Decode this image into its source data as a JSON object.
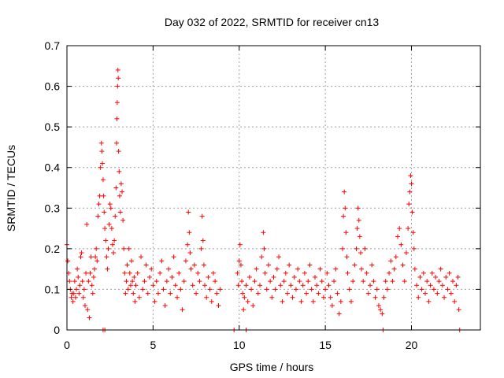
{
  "chart_data": {
    "type": "scatter",
    "title": "Day 032 of 2022, SRMTID for receiver cn13",
    "xlabel": "GPS time / hours",
    "ylabel": "SRMTID / TECUs",
    "xlim": [
      0,
      24
    ],
    "ylim": [
      0,
      0.7
    ],
    "xticks": [
      0,
      5,
      10,
      15,
      20
    ],
    "yticks": [
      0,
      0.1,
      0.2,
      0.3,
      0.4,
      0.5,
      0.6,
      0.7
    ],
    "xtick_labels": [
      "0",
      "5",
      "10",
      "15",
      "20"
    ],
    "ytick_labels": [
      "0",
      "0.1",
      "0.2",
      "0.3",
      "0.4",
      "0.5",
      "0.6",
      "0.7"
    ],
    "grid": true,
    "marker": "+",
    "series": [
      {
        "name": "SRMTID",
        "color": "#ff0000",
        "points": [
          [
            0.0,
            0.21
          ],
          [
            0.05,
            0.17
          ],
          [
            0.1,
            0.14
          ],
          [
            0.15,
            0.12
          ],
          [
            0.2,
            0.1
          ],
          [
            0.25,
            0.08
          ],
          [
            0.3,
            0.09
          ],
          [
            0.35,
            0.07
          ],
          [
            0.4,
            0.09
          ],
          [
            0.45,
            0.12
          ],
          [
            0.5,
            0.08
          ],
          [
            0.55,
            0.1
          ],
          [
            0.6,
            0.15
          ],
          [
            0.65,
            0.13
          ],
          [
            0.7,
            0.09
          ],
          [
            0.75,
            0.11
          ],
          [
            0.8,
            0.18
          ],
          [
            0.85,
            0.19
          ],
          [
            0.9,
            0.12
          ],
          [
            0.95,
            0.08
          ],
          [
            1.0,
            0.1
          ],
          [
            1.05,
            0.06
          ],
          [
            1.1,
            0.14
          ],
          [
            1.15,
            0.26
          ],
          [
            1.2,
            0.05
          ],
          [
            1.25,
            0.12
          ],
          [
            1.3,
            0.03
          ],
          [
            1.35,
            0.14
          ],
          [
            1.4,
            0.18
          ],
          [
            1.45,
            0.11
          ],
          [
            1.5,
            0.09
          ],
          [
            1.55,
            0.13
          ],
          [
            1.6,
            0.15
          ],
          [
            1.65,
            0.18
          ],
          [
            1.7,
            0.2
          ],
          [
            1.75,
            0.17
          ],
          [
            1.8,
            0.28
          ],
          [
            1.85,
            0.31
          ],
          [
            1.9,
            0.33
          ],
          [
            1.95,
            0.4
          ],
          [
            2.0,
            0.46
          ],
          [
            2.03,
            0.44
          ],
          [
            2.06,
            0.41
          ],
          [
            2.1,
            0.37
          ],
          [
            2.13,
            0.33
          ],
          [
            2.16,
            0.29
          ],
          [
            2.2,
            0.25
          ],
          [
            2.25,
            0.22
          ],
          [
            2.3,
            0.18
          ],
          [
            2.35,
            0.15
          ],
          [
            2.4,
            0.2
          ],
          [
            2.45,
            0.26
          ],
          [
            2.5,
            0.31
          ],
          [
            2.55,
            0.3
          ],
          [
            2.6,
            0.25
          ],
          [
            2.65,
            0.21
          ],
          [
            2.7,
            0.19
          ],
          [
            2.75,
            0.22
          ],
          [
            2.8,
            0.28
          ],
          [
            2.85,
            0.35
          ],
          [
            2.88,
            0.46
          ],
          [
            2.9,
            0.52
          ],
          [
            2.92,
            0.56
          ],
          [
            2.94,
            0.6
          ],
          [
            2.96,
            0.64
          ],
          [
            2.98,
            0.62
          ],
          [
            3.0,
            0.44
          ],
          [
            3.03,
            0.39
          ],
          [
            3.06,
            0.33
          ],
          [
            3.1,
            0.29
          ],
          [
            3.15,
            0.36
          ],
          [
            3.2,
            0.34
          ],
          [
            3.25,
            0.27
          ],
          [
            3.3,
            0.2
          ],
          [
            3.35,
            0.14
          ],
          [
            3.4,
            0.09
          ],
          [
            3.45,
            0.12
          ],
          [
            3.5,
            0.16
          ],
          [
            3.55,
            0.1
          ],
          [
            3.6,
            0.2
          ],
          [
            3.65,
            0.14
          ],
          [
            3.7,
            0.11
          ],
          [
            3.75,
            0.17
          ],
          [
            3.8,
            0.12
          ],
          [
            3.85,
            0.09
          ],
          [
            3.9,
            0.13
          ],
          [
            3.95,
            0.07
          ],
          [
            4.0,
            0.11
          ],
          [
            4.1,
            0.14
          ],
          [
            4.2,
            0.08
          ],
          [
            4.3,
            0.18
          ],
          [
            4.4,
            0.1
          ],
          [
            4.5,
            0.12
          ],
          [
            4.6,
            0.16
          ],
          [
            4.7,
            0.09
          ],
          [
            4.8,
            0.13
          ],
          [
            4.9,
            0.15
          ],
          [
            5.0,
            0.11
          ],
          [
            5.1,
            0.07
          ],
          [
            5.2,
            0.12
          ],
          [
            5.3,
            0.09
          ],
          [
            5.4,
            0.14
          ],
          [
            5.5,
            0.17
          ],
          [
            5.6,
            0.1
          ],
          [
            5.7,
            0.06
          ],
          [
            5.8,
            0.12
          ],
          [
            5.9,
            0.15
          ],
          [
            6.0,
            0.09
          ],
          [
            6.1,
            0.13
          ],
          [
            6.2,
            0.18
          ],
          [
            6.3,
            0.11
          ],
          [
            6.4,
            0.08
          ],
          [
            6.5,
            0.14
          ],
          [
            6.6,
            0.1
          ],
          [
            6.7,
            0.05
          ],
          [
            6.8,
            0.12
          ],
          [
            6.9,
            0.17
          ],
          [
            7.0,
            0.21
          ],
          [
            7.05,
            0.29
          ],
          [
            7.1,
            0.24
          ],
          [
            7.15,
            0.19
          ],
          [
            7.2,
            0.15
          ],
          [
            7.3,
            0.11
          ],
          [
            7.4,
            0.16
          ],
          [
            7.5,
            0.09
          ],
          [
            7.6,
            0.14
          ],
          [
            7.7,
            0.12
          ],
          [
            7.8,
            0.2
          ],
          [
            7.85,
            0.28
          ],
          [
            7.9,
            0.22
          ],
          [
            7.95,
            0.16
          ],
          [
            8.0,
            0.11
          ],
          [
            8.1,
            0.08
          ],
          [
            8.2,
            0.13
          ],
          [
            8.3,
            0.1
          ],
          [
            8.4,
            0.07
          ],
          [
            8.5,
            0.14
          ],
          [
            8.6,
            0.12
          ],
          [
            8.7,
            0.09
          ],
          [
            8.8,
            0.06
          ],
          [
            8.9,
            0.1
          ],
          [
            9.9,
            0.14
          ],
          [
            9.95,
            0.11
          ],
          [
            10.0,
            0.17
          ],
          [
            10.05,
            0.21
          ],
          [
            10.1,
            0.16
          ],
          [
            10.15,
            0.12
          ],
          [
            10.2,
            0.09
          ],
          [
            10.25,
            0.05
          ],
          [
            10.3,
            0.08
          ],
          [
            10.4,
            0.11
          ],
          [
            10.5,
            0.07
          ],
          [
            10.6,
            0.13
          ],
          [
            10.7,
            0.1
          ],
          [
            10.8,
            0.06
          ],
          [
            10.9,
            0.12
          ],
          [
            11.0,
            0.15
          ],
          [
            11.1,
            0.09
          ],
          [
            11.2,
            0.11
          ],
          [
            11.3,
            0.18
          ],
          [
            11.4,
            0.24
          ],
          [
            11.45,
            0.2
          ],
          [
            11.5,
            0.14
          ],
          [
            11.6,
            0.1
          ],
          [
            11.7,
            0.16
          ],
          [
            11.8,
            0.12
          ],
          [
            11.9,
            0.08
          ],
          [
            12.0,
            0.13
          ],
          [
            12.1,
            0.1
          ],
          [
            12.2,
            0.15
          ],
          [
            12.3,
            0.18
          ],
          [
            12.4,
            0.11
          ],
          [
            12.5,
            0.07
          ],
          [
            12.6,
            0.12
          ],
          [
            12.7,
            0.14
          ],
          [
            12.8,
            0.09
          ],
          [
            12.9,
            0.16
          ],
          [
            13.0,
            0.11
          ],
          [
            13.1,
            0.08
          ],
          [
            13.2,
            0.13
          ],
          [
            13.3,
            0.1
          ],
          [
            13.4,
            0.15
          ],
          [
            13.5,
            0.12
          ],
          [
            13.6,
            0.07
          ],
          [
            13.7,
            0.11
          ],
          [
            13.8,
            0.14
          ],
          [
            13.9,
            0.09
          ],
          [
            14.0,
            0.12
          ],
          [
            14.1,
            0.16
          ],
          [
            14.2,
            0.1
          ],
          [
            14.3,
            0.07
          ],
          [
            14.4,
            0.13
          ],
          [
            14.5,
            0.11
          ],
          [
            14.6,
            0.09
          ],
          [
            14.7,
            0.15
          ],
          [
            14.8,
            0.12
          ],
          [
            14.9,
            0.08
          ],
          [
            15.0,
            0.1
          ],
          [
            15.1,
            0.14
          ],
          [
            15.2,
            0.11
          ],
          [
            15.3,
            0.08
          ],
          [
            15.4,
            0.06
          ],
          [
            15.5,
            0.12
          ],
          [
            15.6,
            0.15
          ],
          [
            15.7,
            0.09
          ],
          [
            15.8,
            0.04
          ],
          [
            15.9,
            0.07
          ],
          [
            16.0,
            0.2
          ],
          [
            16.05,
            0.28
          ],
          [
            16.1,
            0.34
          ],
          [
            16.15,
            0.3
          ],
          [
            16.2,
            0.24
          ],
          [
            16.25,
            0.18
          ],
          [
            16.3,
            0.14
          ],
          [
            16.4,
            0.1
          ],
          [
            16.5,
            0.07
          ],
          [
            16.6,
            0.12
          ],
          [
            16.7,
            0.16
          ],
          [
            16.8,
            0.2
          ],
          [
            16.85,
            0.25
          ],
          [
            16.9,
            0.3
          ],
          [
            16.95,
            0.27
          ],
          [
            17.0,
            0.23
          ],
          [
            17.05,
            0.19
          ],
          [
            17.1,
            0.15
          ],
          [
            17.2,
            0.12
          ],
          [
            17.3,
            0.2
          ],
          [
            17.4,
            0.14
          ],
          [
            17.5,
            0.09
          ],
          [
            17.6,
            0.11
          ],
          [
            17.7,
            0.16
          ],
          [
            17.8,
            0.12
          ],
          [
            17.9,
            0.08
          ],
          [
            18.0,
            0.1
          ],
          [
            18.1,
            0.06
          ],
          [
            18.2,
            0.05
          ],
          [
            18.3,
            0.04
          ],
          [
            18.4,
            0.08
          ],
          [
            18.5,
            0.12
          ],
          [
            18.6,
            0.1
          ],
          [
            18.7,
            0.14
          ],
          [
            18.8,
            0.17
          ],
          [
            18.9,
            0.12
          ],
          [
            19.0,
            0.15
          ],
          [
            19.1,
            0.18
          ],
          [
            19.2,
            0.23
          ],
          [
            19.3,
            0.25
          ],
          [
            19.4,
            0.21
          ],
          [
            19.5,
            0.16
          ],
          [
            19.6,
            0.12
          ],
          [
            19.7,
            0.19
          ],
          [
            19.8,
            0.25
          ],
          [
            19.85,
            0.31
          ],
          [
            19.9,
            0.34
          ],
          [
            19.95,
            0.38
          ],
          [
            20.0,
            0.36
          ],
          [
            20.05,
            0.29
          ],
          [
            20.1,
            0.24
          ],
          [
            20.15,
            0.2
          ],
          [
            20.2,
            0.15
          ],
          [
            20.3,
            0.11
          ],
          [
            20.4,
            0.08
          ],
          [
            20.5,
            0.13
          ],
          [
            20.6,
            0.1
          ],
          [
            20.7,
            0.14
          ],
          [
            20.8,
            0.09
          ],
          [
            20.9,
            0.12
          ],
          [
            21.0,
            0.07
          ],
          [
            21.1,
            0.11
          ],
          [
            21.2,
            0.14
          ],
          [
            21.3,
            0.1
          ],
          [
            21.4,
            0.13
          ],
          [
            21.5,
            0.09
          ],
          [
            21.6,
            0.12
          ],
          [
            21.7,
            0.15
          ],
          [
            21.8,
            0.11
          ],
          [
            21.9,
            0.08
          ],
          [
            22.0,
            0.13
          ],
          [
            22.1,
            0.1
          ],
          [
            22.2,
            0.14
          ],
          [
            22.3,
            0.09
          ],
          [
            22.4,
            0.12
          ],
          [
            22.5,
            0.07
          ],
          [
            22.6,
            0.11
          ],
          [
            22.7,
            0.13
          ],
          [
            22.75,
            0.05
          ],
          [
            2.1,
            0.0
          ],
          [
            2.2,
            0.0
          ],
          [
            9.7,
            0.0
          ],
          [
            10.4,
            0.0
          ],
          [
            18.35,
            0.0
          ],
          [
            22.8,
            0.0
          ]
        ]
      }
    ]
  }
}
